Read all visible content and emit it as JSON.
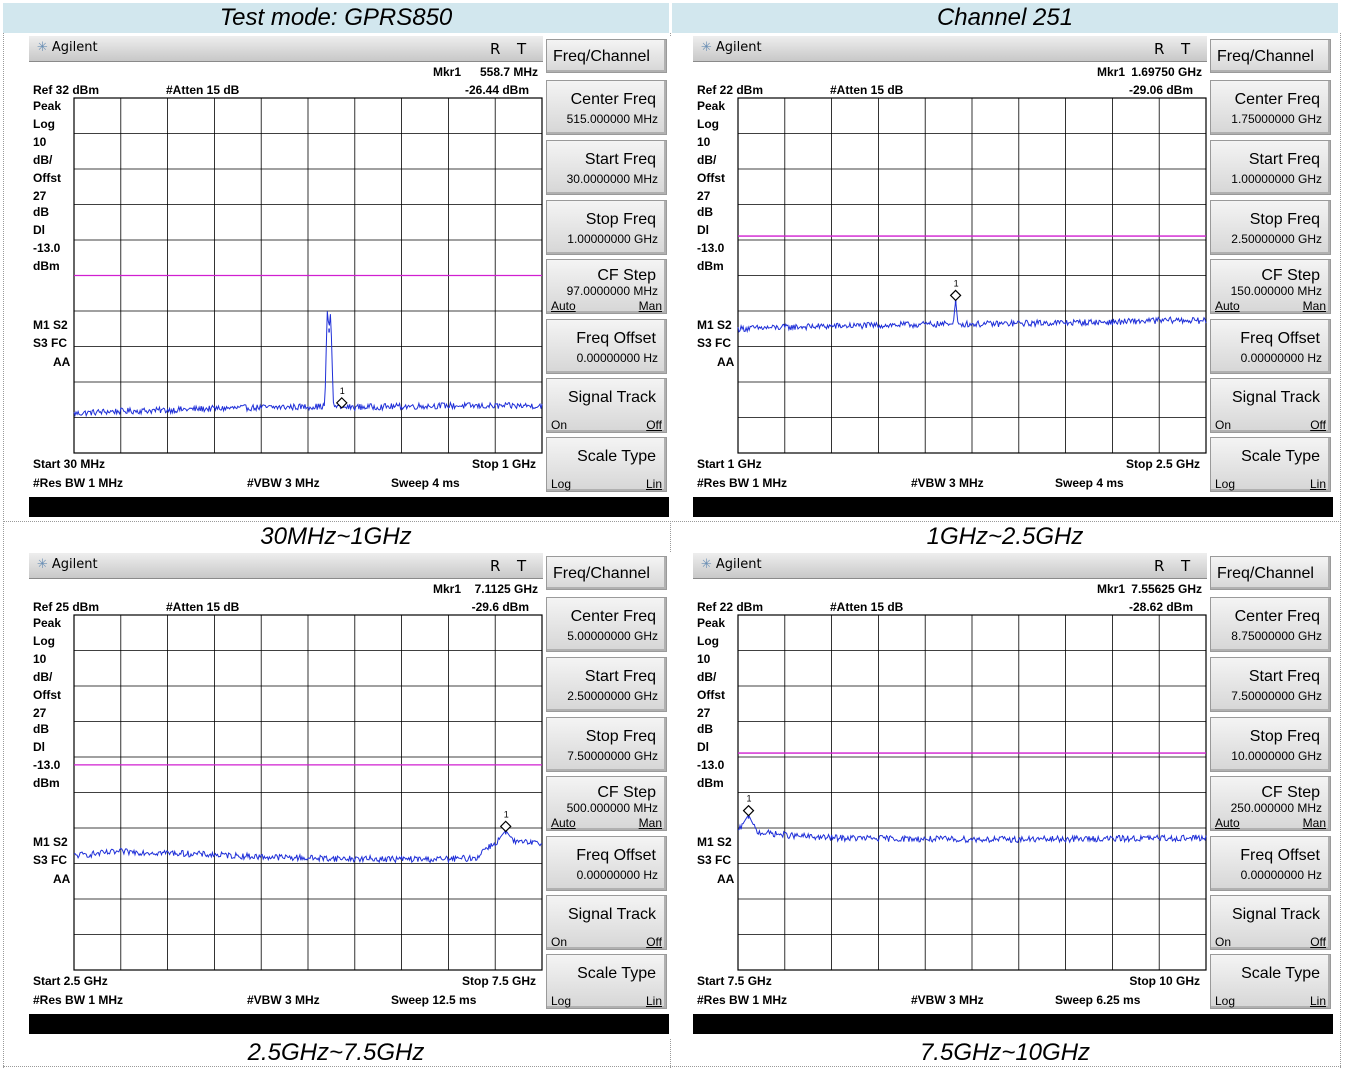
{
  "header": {
    "left": "Test mode: GPRS850",
    "right": "Channel 251"
  },
  "panels": [
    {
      "caption": "30MHz~1GHz",
      "brand": "Agilent",
      "r": "R",
      "t": "T",
      "mkr_label": "Mkr1",
      "mkr_freq": "558.7 MHz",
      "mkr_level": "-26.44 dBm",
      "ref": "Ref 32 dBm",
      "atten": "#Atten 15 dB",
      "left_labels": [
        "Peak",
        "Log",
        "10",
        "dB/",
        "Offst",
        "27",
        "dB",
        "Dl",
        "-13.0",
        "dBm"
      ],
      "m1": "M1  S2",
      "s3": "S3  FC",
      "aa": "AA",
      "start": "Start 30 MHz",
      "stop": "Stop 1 GHz",
      "rbw": "#Res BW 1 MHz",
      "vbw": "#VBW 3 MHz",
      "sweep": "Sweep 4 ms",
      "marker_num": "1",
      "softkeys": {
        "menu": "Freq/Channel",
        "center_label": "Center Freq",
        "center_val": "515.000000 MHz",
        "start_label": "Start Freq",
        "start_val": "30.0000000 MHz",
        "stop_label": "Stop Freq",
        "stop_val": "1.00000000 GHz",
        "cf_label": "CF Step",
        "cf_val": "97.0000000 MHz",
        "cf_auto": "Auto",
        "cf_man": "Man",
        "offset_label": "Freq Offset",
        "offset_val": "0.00000000  Hz",
        "track_label": "Signal Track",
        "track_on": "On",
        "track_off": "Off",
        "scale_label": "Scale Type",
        "scale_log": "Log",
        "scale_lin": "Lin"
      },
      "chart_data": {
        "type": "line",
        "x_range_mhz": [
          30,
          1000
        ],
        "ylim_dbm": [
          -58,
          32
        ],
        "limit_line_dbm": -13.0,
        "series": [
          {
            "values": [
              [
                30,
                -48.0
              ],
              [
                100,
                -47.5
              ],
              [
                200,
                -47.2
              ],
              [
                300,
                -46.8
              ],
              [
                400,
                -46.5
              ],
              [
                500,
                -46.3
              ],
              [
                545,
                -46.2
              ],
              [
                550,
                -46.0
              ],
              [
                552,
                -35.0
              ],
              [
                555,
                -22.0
              ],
              [
                558.7,
                -26.44
              ],
              [
                562,
                -22.0
              ],
              [
                565,
                -35.0
              ],
              [
                568,
                -46.2
              ],
              [
                600,
                -46.4
              ],
              [
                700,
                -46.2
              ],
              [
                800,
                -46.0
              ],
              [
                900,
                -46.1
              ],
              [
                1000,
                -46.0
              ]
            ]
          }
        ],
        "marker": {
          "label": "1",
          "x_mhz": 558.7,
          "y_dbm": -26.44
        },
        "marker_symbol_x_mhz": 585,
        "grid": true
      }
    },
    {
      "caption": "1GHz~2.5GHz",
      "brand": "Agilent",
      "r": "R",
      "t": "T",
      "mkr_label": "Mkr1",
      "mkr_freq": "1.69750 GHz",
      "mkr_level": "-29.06 dBm",
      "ref": "Ref 22 dBm",
      "atten": "#Atten 15 dB",
      "left_labels": [
        "Peak",
        "Log",
        "10",
        "dB/",
        "Offst",
        "27",
        "dB",
        "Dl",
        "-13.0",
        "dBm"
      ],
      "m1": "M1  S2",
      "s3": "S3  FC",
      "aa": "AA",
      "start": "Start 1 GHz",
      "stop": "Stop 2.5 GHz",
      "rbw": "#Res BW 1 MHz",
      "vbw": "#VBW 3 MHz",
      "sweep": "Sweep 4 ms",
      "marker_num": "1",
      "softkeys": {
        "menu": "Freq/Channel",
        "center_label": "Center Freq",
        "center_val": "1.75000000 GHz",
        "start_label": "Start Freq",
        "start_val": "1.00000000 GHz",
        "stop_label": "Stop Freq",
        "stop_val": "2.50000000 GHz",
        "cf_label": "CF Step",
        "cf_val": "150.000000 MHz",
        "cf_auto": "Auto",
        "cf_man": "Man",
        "offset_label": "Freq Offset",
        "offset_val": "0.00000000  Hz",
        "track_label": "Signal Track",
        "track_on": "On",
        "track_off": "Off",
        "scale_label": "Scale Type",
        "scale_log": "Log",
        "scale_lin": "Lin"
      },
      "chart_data": {
        "type": "line",
        "x_range_mhz": [
          1000,
          2500
        ],
        "ylim_dbm": [
          -68,
          22
        ],
        "limit_line_dbm": -13.0,
        "series": [
          {
            "values": [
              [
                1000,
                -36.5
              ],
              [
                1200,
                -36.0
              ],
              [
                1400,
                -35.7
              ],
              [
                1600,
                -35.4
              ],
              [
                1690,
                -35.3
              ],
              [
                1697.5,
                -29.06
              ],
              [
                1705,
                -35.3
              ],
              [
                1800,
                -35.3
              ],
              [
                2000,
                -35.0
              ],
              [
                2200,
                -34.8
              ],
              [
                2400,
                -34.3
              ],
              [
                2500,
                -34.5
              ]
            ]
          }
        ],
        "marker": {
          "label": "1",
          "x_mhz": 1697.5,
          "y_dbm": -29.06
        },
        "grid": true
      }
    },
    {
      "caption": "2.5GHz~7.5GHz",
      "brand": "Agilent",
      "r": "R",
      "t": "T",
      "mkr_label": "Mkr1",
      "mkr_freq": "7.1125 GHz",
      "mkr_level": "-29.6 dBm",
      "ref": "Ref 25 dBm",
      "atten": "#Atten 15 dB",
      "left_labels": [
        "Peak",
        "Log",
        "10",
        "dB/",
        "Offst",
        "27",
        "dB",
        "Dl",
        "-13.0",
        "dBm"
      ],
      "m1": "M1  S2",
      "s3": "S3  FC",
      "aa": "AA",
      "start": "Start 2.5 GHz",
      "stop": "Stop 7.5 GHz",
      "rbw": "#Res BW 1 MHz",
      "vbw": "#VBW 3 MHz",
      "sweep": "Sweep 12.5 ms",
      "marker_num": "1",
      "softkeys": {
        "menu": "Freq/Channel",
        "center_label": "Center Freq",
        "center_val": "5.00000000 GHz",
        "start_label": "Start Freq",
        "start_val": "2.50000000 GHz",
        "stop_label": "Stop Freq",
        "stop_val": "7.50000000 GHz",
        "cf_label": "CF Step",
        "cf_val": "500.000000 MHz",
        "cf_auto": "Auto",
        "cf_man": "Man",
        "offset_label": "Freq Offset",
        "offset_val": "0.00000000  Hz",
        "track_label": "Signal Track",
        "track_on": "On",
        "track_off": "Off",
        "scale_label": "Scale Type",
        "scale_log": "Log",
        "scale_lin": "Lin"
      },
      "chart_data": {
        "type": "line",
        "x_range_mhz": [
          2500,
          7500
        ],
        "ylim_dbm": [
          -65,
          25
        ],
        "limit_line_dbm": -13.0,
        "series": [
          {
            "values": [
              [
                2500,
                -36.0
              ],
              [
                3000,
                -35.0
              ],
              [
                3500,
                -35.3
              ],
              [
                4000,
                -35.8
              ],
              [
                4500,
                -36.3
              ],
              [
                5000,
                -36.6
              ],
              [
                5500,
                -36.8
              ],
              [
                6000,
                -36.9
              ],
              [
                6500,
                -36.9
              ],
              [
                6800,
                -36.6
              ],
              [
                6900,
                -34.0
              ],
              [
                7000,
                -33.0
              ],
              [
                7112.5,
                -29.6
              ],
              [
                7200,
                -32.5
              ],
              [
                7500,
                -33.0
              ]
            ]
          }
        ],
        "marker": {
          "label": "1",
          "x_mhz": 7112.5,
          "y_dbm": -29.6
        },
        "grid": true
      }
    },
    {
      "caption": "7.5GHz~10GHz",
      "brand": "Agilent",
      "r": "R",
      "t": "T",
      "mkr_label": "Mkr1",
      "mkr_freq": "7.55625 GHz",
      "mkr_level": "-28.62 dBm",
      "ref": "Ref 22 dBm",
      "atten": "#Atten 15 dB",
      "left_labels": [
        "Peak",
        "Log",
        "10",
        "dB/",
        "Offst",
        "27",
        "dB",
        "Dl",
        "-13.0",
        "dBm"
      ],
      "m1": "M1  S2",
      "s3": "S3  FC",
      "aa": "AA",
      "start": "Start 7.5 GHz",
      "stop": "Stop 10 GHz",
      "rbw": "#Res BW 1 MHz",
      "vbw": "#VBW 3 MHz",
      "sweep": "Sweep 6.25 ms",
      "marker_num": "1",
      "softkeys": {
        "menu": "Freq/Channel",
        "center_label": "Center Freq",
        "center_val": "8.75000000 GHz",
        "start_label": "Start Freq",
        "start_val": "7.50000000 GHz",
        "stop_label": "Stop Freq",
        "stop_val": "10.0000000 GHz",
        "cf_label": "CF Step",
        "cf_val": "250.000000 MHz",
        "cf_auto": "Auto",
        "cf_man": "Man",
        "offset_label": "Freq Offset",
        "offset_val": "0.00000000  Hz",
        "track_label": "Signal Track",
        "track_on": "On",
        "track_off": "Off",
        "scale_label": "Scale Type",
        "scale_log": "Log",
        "scale_lin": "Lin"
      },
      "chart_data": {
        "type": "line",
        "x_range_mhz": [
          7500,
          10000
        ],
        "ylim_dbm": [
          -68,
          22
        ],
        "limit_line_dbm": -13.0,
        "series": [
          {
            "values": [
              [
                7500,
                -33.0
              ],
              [
                7556.25,
                -28.62
              ],
              [
                7600,
                -33.0
              ],
              [
                7800,
                -34.0
              ],
              [
                8000,
                -34.5
              ],
              [
                8500,
                -34.8
              ],
              [
                9000,
                -34.9
              ],
              [
                9500,
                -34.7
              ],
              [
                10000,
                -34.5
              ]
            ]
          }
        ],
        "marker": {
          "label": "1",
          "x_mhz": 7556.25,
          "y_dbm": -28.62
        },
        "grid": true
      }
    }
  ],
  "colors": {
    "trace": "#1f2fd8",
    "limit": "#d11fd1",
    "grid": "#000000",
    "header_bg": "#d2e7ee",
    "black_bar": "#000000"
  }
}
